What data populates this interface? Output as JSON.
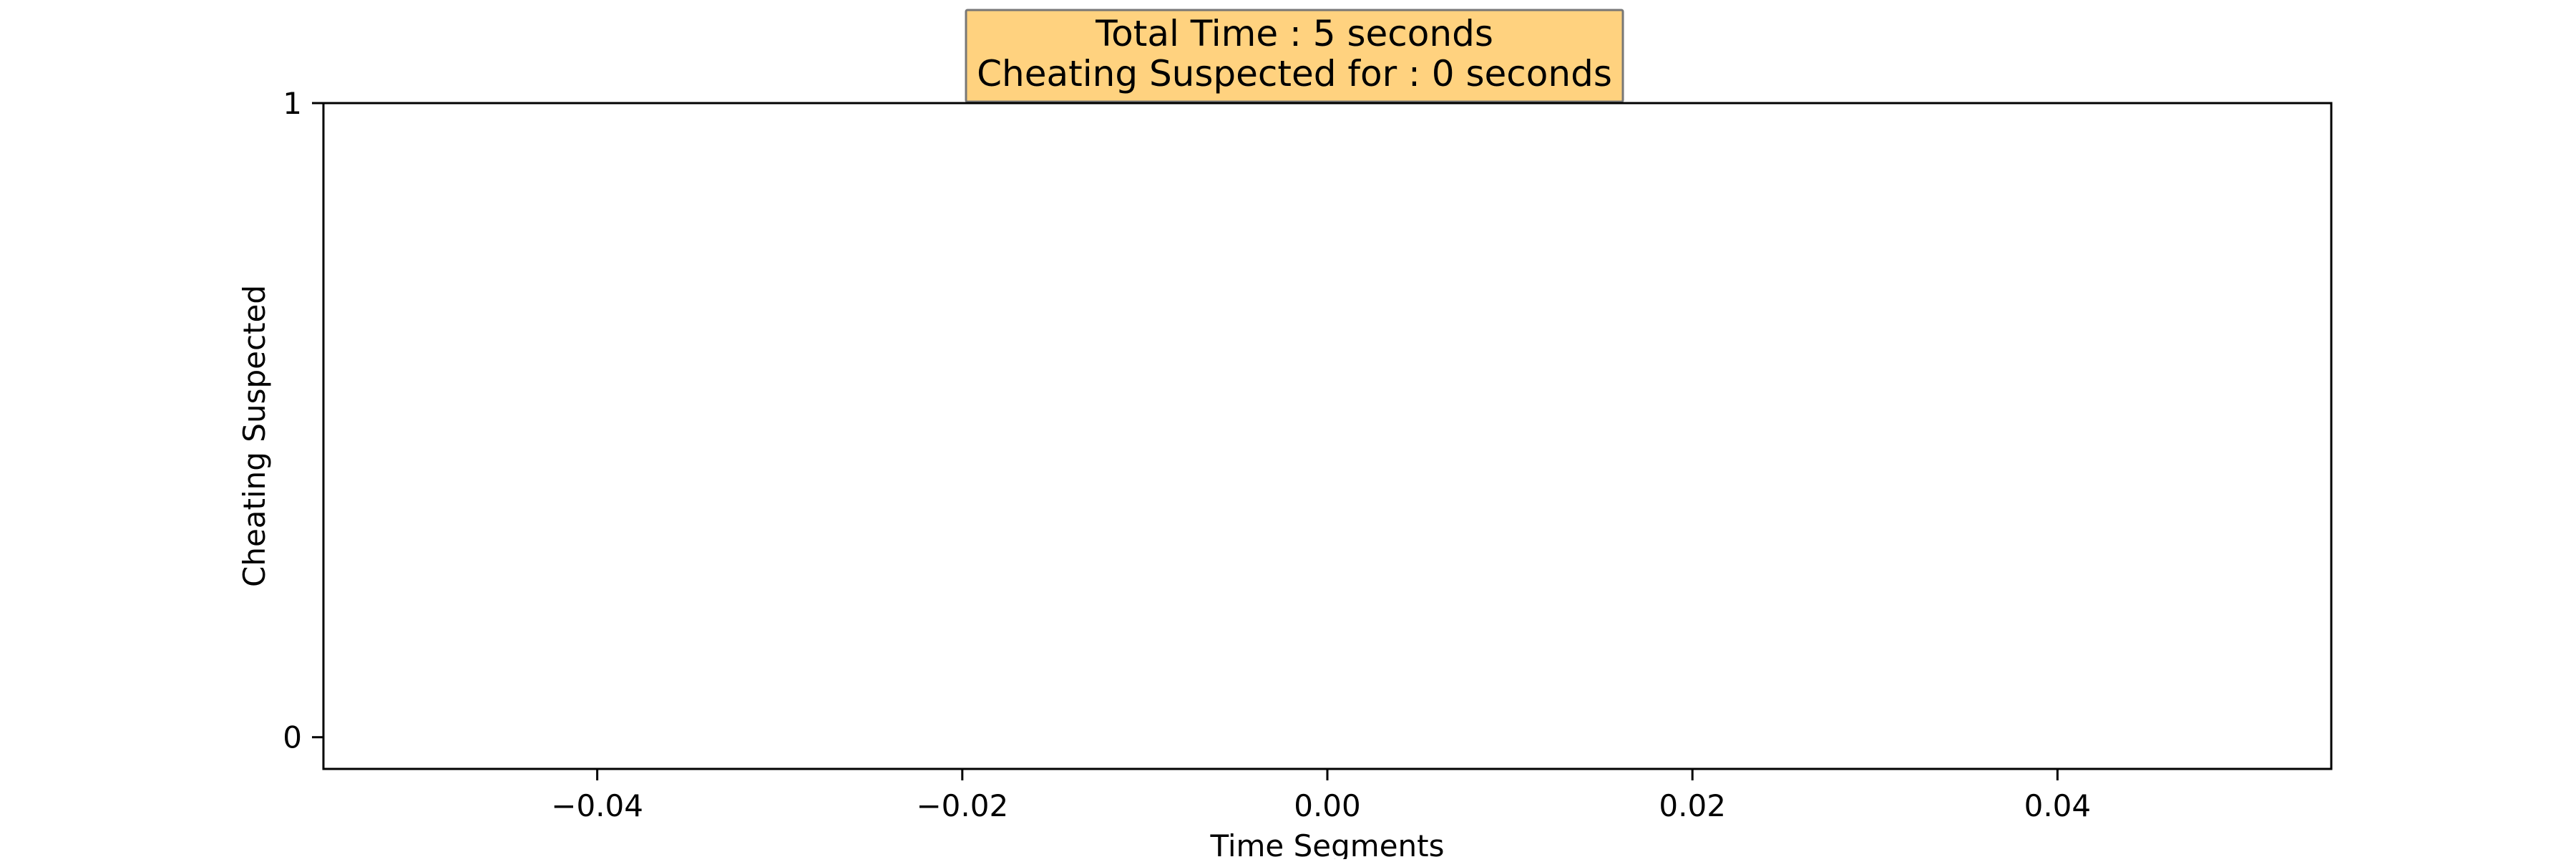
{
  "chart_data": {
    "type": "line",
    "title_lines": [
      "Total Time : 5 seconds",
      "Cheating Suspected for : 0 seconds"
    ],
    "xlabel": "Time Segments",
    "ylabel": "Cheating Suspected",
    "x": [],
    "series": [
      {
        "values": []
      }
    ],
    "xlim": [
      -0.055,
      0.055
    ],
    "ylim": [
      -0.05,
      1.0
    ],
    "xticks": [
      -0.04,
      -0.02,
      0.0,
      0.02,
      0.04
    ],
    "xtick_labels": [
      "−0.04",
      "−0.02",
      "0.00",
      "0.02",
      "0.04"
    ],
    "yticks": [
      0,
      1
    ],
    "ytick_labels": [
      "0",
      "1"
    ],
    "grid": false,
    "title_box_color": "#ffd27f",
    "title_box_border": "#777777"
  }
}
